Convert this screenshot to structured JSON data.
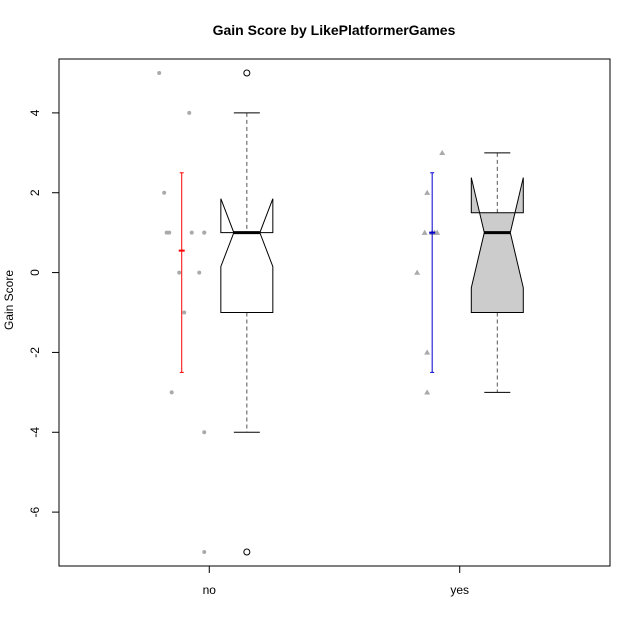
{
  "chart_data": {
    "type": "box",
    "title": "Gain Score by LikePlatformerGames",
    "xlabel": "",
    "ylabel": "Gain Score",
    "ylim": [
      -7.35,
      5.35
    ],
    "y_ticks": [
      -6,
      -4,
      -2,
      0,
      2,
      4
    ],
    "y_tick_labels": [
      "-6",
      "-4",
      "-2",
      "0",
      "2",
      "4"
    ],
    "categories": [
      "no",
      "yes"
    ],
    "notch": true,
    "boxes": [
      {
        "category": "no",
        "fill": "#ffffff",
        "whisker_low": -4,
        "q1": -1,
        "median": 1,
        "q3": 1,
        "whisker_high": 4,
        "notch_low": 0.15,
        "notch_high": 1.85,
        "outliers": [
          5,
          -7
        ]
      },
      {
        "category": "yes",
        "fill": "#cccccc",
        "whisker_low": -3,
        "q1": -1,
        "median": 1,
        "q3": 1.5,
        "whisker_high": 3,
        "notch_low": -0.38,
        "notch_high": 2.38,
        "outliers": []
      }
    ],
    "error_bars": [
      {
        "category": "no",
        "mean": 0.55,
        "low": -2.5,
        "high": 2.5,
        "color": "#ff0000"
      },
      {
        "category": "yes",
        "mean": 1.0,
        "low": -2.5,
        "high": 2.5,
        "color": "#0000cc"
      }
    ],
    "jitter_points": [
      {
        "category": "no",
        "marker": "circle",
        "color": "#aaaaaa",
        "x": [
          0.8,
          0.82,
          0.83,
          0.84,
          0.85,
          0.88,
          0.9,
          0.92,
          0.93,
          0.96,
          0.98,
          0.98,
          0.98,
          0.98
        ],
        "y": [
          5,
          2,
          1,
          1,
          -3,
          0,
          -1,
          4,
          1,
          0,
          1,
          1,
          -4,
          -7
        ]
      },
      {
        "category": "yes",
        "marker": "triangle",
        "color": "#aaaaaa",
        "x": [
          1.83,
          1.86,
          1.87,
          1.87,
          1.87,
          1.89,
          1.89,
          1.9,
          1.91,
          1.93
        ],
        "y": [
          0,
          1,
          2,
          -2,
          -3,
          1,
          1,
          1,
          1,
          3
        ]
      }
    ]
  }
}
